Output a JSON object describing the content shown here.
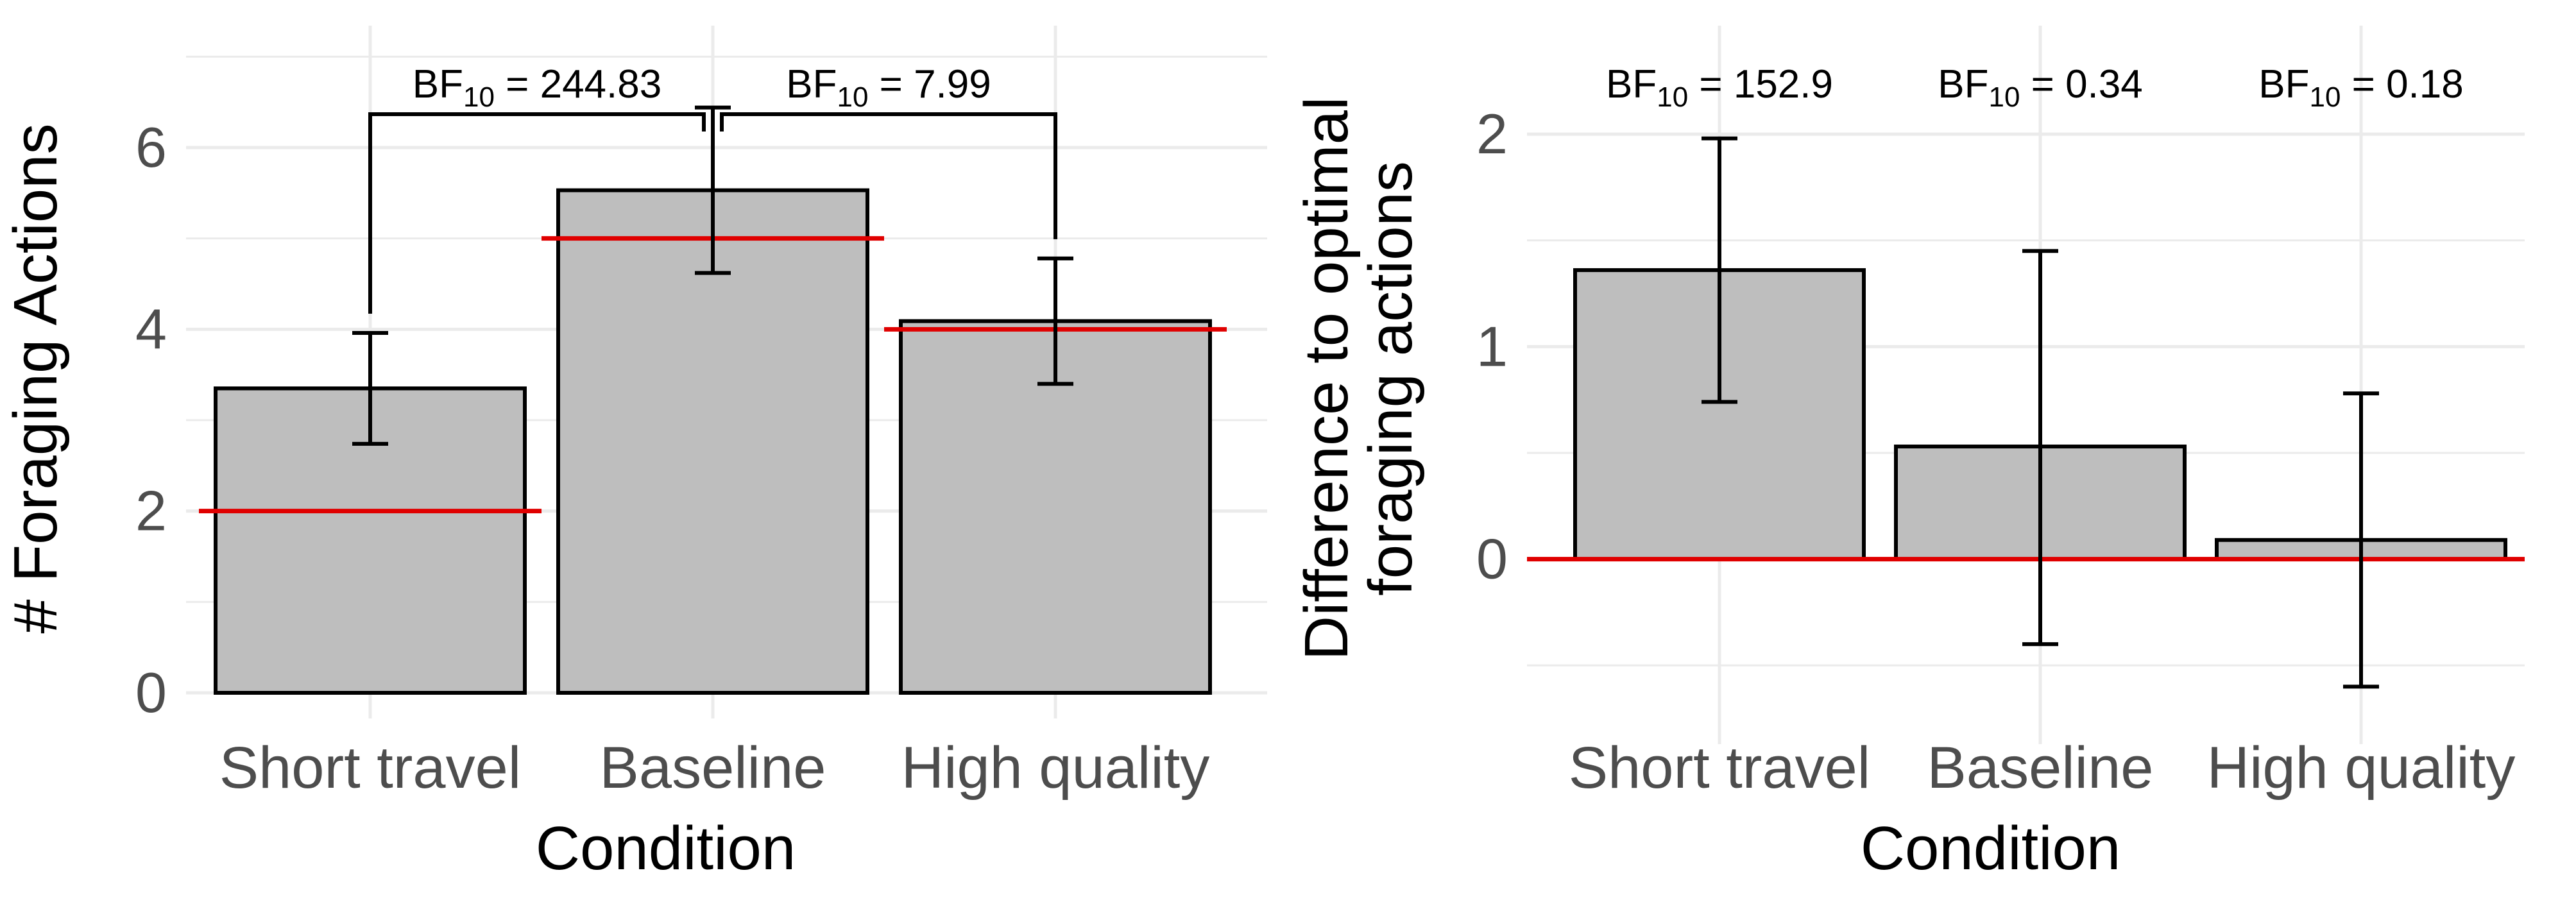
{
  "chart_data": [
    {
      "type": "bar",
      "categories": [
        "Short travel",
        "Baseline",
        "High quality"
      ],
      "values": [
        3.35,
        5.53,
        4.09
      ],
      "error_bars": {
        "lower": [
          2.74,
          4.62,
          3.4
        ],
        "upper": [
          3.96,
          6.44,
          4.78
        ]
      },
      "reference_lines": [
        2,
        5,
        4
      ],
      "xlabel": "Condition",
      "ylabel": "# Foraging Actions",
      "ylim": [
        0,
        7.2
      ],
      "yticks": [
        0,
        2,
        4,
        6
      ],
      "grid": true,
      "bar_color": "#bebebe",
      "reference_color": "#e00000",
      "annotations": [
        {
          "label": "BF",
          "subscript": "10",
          "text": " = 244.83",
          "from": "Short travel",
          "to": "Baseline",
          "level": 6.9
        },
        {
          "label": "BF",
          "subscript": "10",
          "text": " = 7.99",
          "from": "Baseline",
          "to": "High quality",
          "level": 6.9
        }
      ]
    },
    {
      "type": "bar",
      "categories": [
        "Short travel",
        "Baseline",
        "High quality"
      ],
      "values": [
        1.36,
        0.53,
        0.09
      ],
      "error_bars": {
        "lower": [
          0.74,
          -0.4,
          -0.6
        ],
        "upper": [
          1.98,
          1.45,
          0.78
        ]
      },
      "reference_lines": [
        0
      ],
      "xlabel": "Condition",
      "ylabel": "Difference to optimal foraging actions",
      "ylabel_lines": [
        "Difference to optimal",
        "foraging actions"
      ],
      "ylim": [
        -0.75,
        2.45
      ],
      "yticks": [
        0,
        1,
        2
      ],
      "grid": true,
      "bar_color": "#bebebe",
      "reference_color": "#e00000",
      "annotations": [
        {
          "label": "BF",
          "subscript": "10",
          "text": " = 152.9",
          "category": "Short travel"
        },
        {
          "label": "BF",
          "subscript": "10",
          "text": " = 0.34",
          "category": "Baseline"
        },
        {
          "label": "BF",
          "subscript": "10",
          "text": " = 0.18",
          "category": "High quality"
        }
      ]
    }
  ]
}
